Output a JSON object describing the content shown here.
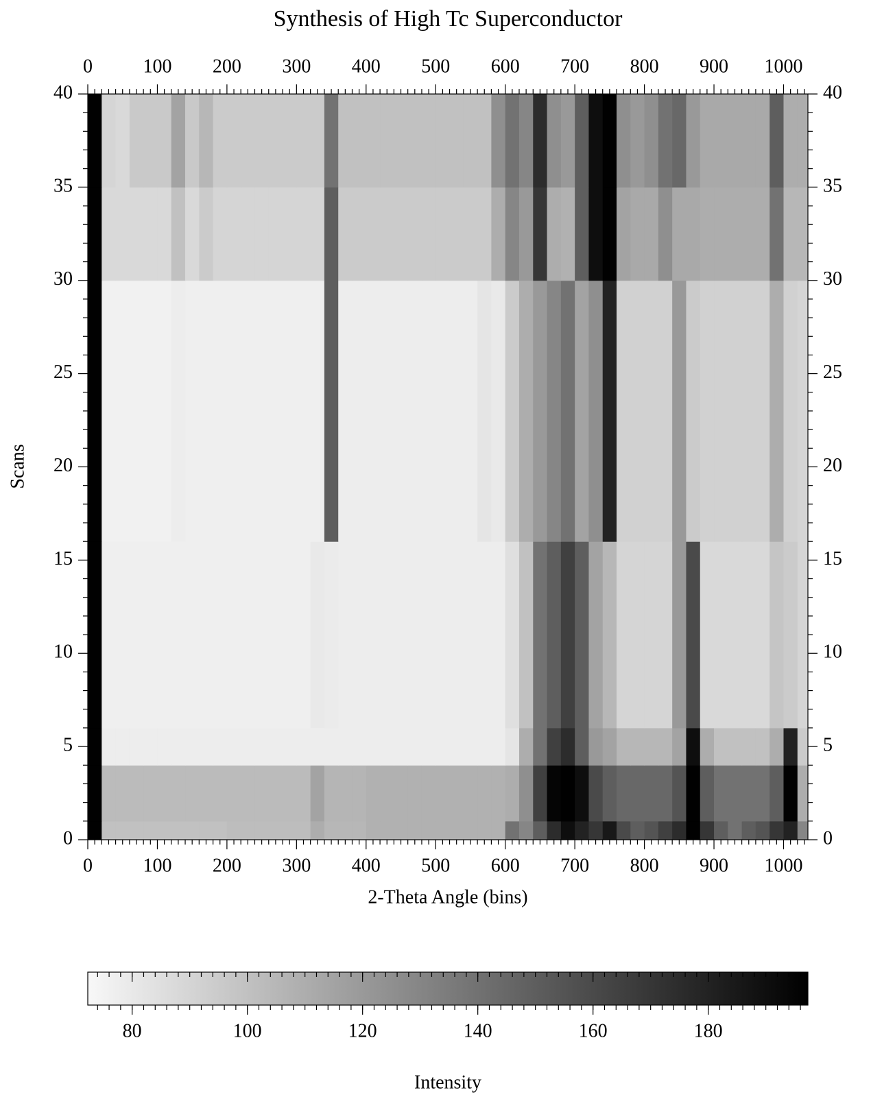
{
  "chart_data": {
    "type": "heatmap",
    "title": "Synthesis of High Tc Superconductor",
    "x_label": "2-Theta Angle (bins)",
    "y_label": "Scans",
    "colorbar_label": "Intensity",
    "xlim": [
      0,
      1035
    ],
    "ylim": [
      0,
      40
    ],
    "xticks": [
      0,
      100,
      200,
      300,
      400,
      500,
      600,
      700,
      800,
      900,
      1000
    ],
    "yticks": [
      0,
      5,
      10,
      15,
      20,
      25,
      30,
      35,
      40
    ],
    "colorbar_lim": [
      72.3,
      197.3
    ],
    "colorbar_ticks": [
      80,
      100,
      120,
      140,
      160,
      180
    ],
    "colormap": [
      "#f8f8f8",
      "#000000"
    ],
    "x_edges": [
      0,
      20,
      40,
      60,
      80,
      100,
      120,
      140,
      160,
      180,
      200,
      220,
      240,
      260,
      280,
      300,
      320,
      340,
      360,
      380,
      400,
      420,
      440,
      460,
      480,
      500,
      520,
      540,
      560,
      580,
      600,
      620,
      640,
      660,
      680,
      700,
      720,
      740,
      760,
      780,
      800,
      820,
      840,
      860,
      880,
      900,
      920,
      940,
      960,
      980,
      1000,
      1020,
      1035
    ],
    "y_edges": [
      0,
      1,
      4,
      6,
      16,
      30,
      35,
      40
    ],
    "values": [
      [
        197,
        100,
        100,
        100,
        100,
        100,
        100,
        100,
        100,
        100,
        102,
        102,
        102,
        102,
        102,
        102,
        110,
        105,
        105,
        105,
        108,
        108,
        108,
        108,
        108,
        108,
        108,
        108,
        108,
        108,
        140,
        130,
        150,
        175,
        190,
        180,
        170,
        185,
        160,
        150,
        155,
        165,
        175,
        197,
        170,
        150,
        140,
        150,
        155,
        170,
        180,
        130
      ],
      [
        197,
        103,
        103,
        103,
        103,
        103,
        103,
        103,
        103,
        103,
        103,
        103,
        103,
        103,
        103,
        103,
        115,
        106,
        106,
        106,
        108,
        108,
        108,
        108,
        108,
        108,
        108,
        108,
        108,
        108,
        110,
        125,
        165,
        195,
        197,
        190,
        160,
        150,
        145,
        145,
        145,
        145,
        155,
        197,
        150,
        140,
        140,
        140,
        140,
        150,
        197,
        110
      ],
      [
        197,
        78,
        78,
        78,
        78,
        78,
        78,
        78,
        78,
        78,
        78,
        78,
        78,
        78,
        78,
        78,
        78,
        78,
        78,
        78,
        78,
        78,
        78,
        78,
        78,
        78,
        78,
        78,
        78,
        78,
        82,
        110,
        140,
        165,
        175,
        150,
        120,
        115,
        105,
        105,
        105,
        105,
        115,
        190,
        110,
        100,
        100,
        100,
        100,
        110,
        180,
        95
      ],
      [
        197,
        77,
        77,
        77,
        77,
        77,
        77,
        77,
        77,
        77,
        77,
        77,
        77,
        77,
        77,
        77,
        80,
        79,
        78,
        78,
        78,
        78,
        78,
        78,
        78,
        78,
        78,
        78,
        78,
        78,
        85,
        100,
        140,
        150,
        165,
        150,
        115,
        105,
        90,
        90,
        90,
        90,
        120,
        160,
        88,
        88,
        88,
        88,
        88,
        98,
        95,
        90
      ],
      [
        197,
        76,
        76,
        76,
        76,
        76,
        78,
        77,
        77,
        77,
        77,
        77,
        77,
        77,
        77,
        77,
        77,
        150,
        78,
        78,
        78,
        78,
        78,
        78,
        78,
        78,
        78,
        78,
        82,
        80,
        95,
        110,
        120,
        130,
        140,
        115,
        125,
        180,
        92,
        92,
        92,
        92,
        120,
        95,
        92,
        92,
        92,
        92,
        92,
        110,
        92,
        90
      ],
      [
        197,
        88,
        88,
        88,
        88,
        88,
        100,
        88,
        95,
        90,
        90,
        90,
        90,
        90,
        90,
        90,
        90,
        150,
        95,
        95,
        95,
        95,
        95,
        95,
        95,
        95,
        95,
        95,
        95,
        110,
        130,
        120,
        170,
        110,
        108,
        150,
        190,
        197,
        115,
        112,
        112,
        125,
        112,
        112,
        110,
        110,
        110,
        110,
        110,
        140,
        105,
        105
      ],
      [
        197,
        90,
        88,
        96,
        96,
        96,
        115,
        96,
        105,
        95,
        95,
        95,
        95,
        95,
        95,
        95,
        95,
        140,
        100,
        100,
        100,
        100,
        100,
        100,
        100,
        100,
        100,
        100,
        100,
        125,
        140,
        130,
        175,
        125,
        120,
        150,
        190,
        197,
        125,
        120,
        125,
        140,
        145,
        120,
        112,
        112,
        112,
        112,
        112,
        150,
        110,
        110
      ]
    ]
  }
}
